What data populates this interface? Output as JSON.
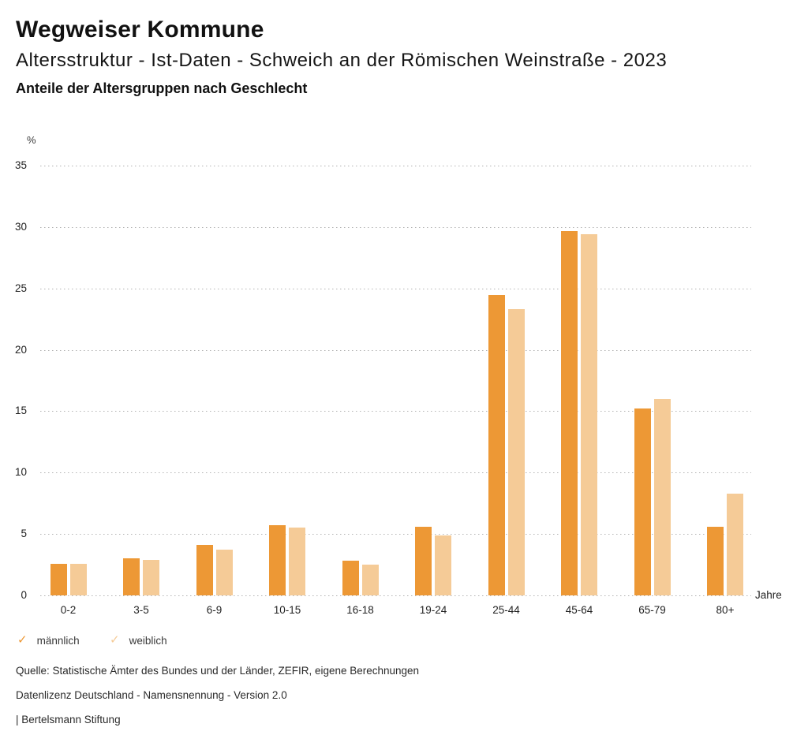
{
  "header": {
    "brand": "Wegweiser Kommune",
    "title": "Altersstruktur - Ist-Daten - Schweich an der Römischen Weinstraße - 2023",
    "subtitle": "Anteile der Altersgruppen nach Geschlecht"
  },
  "chart_data": {
    "type": "bar",
    "title": "Anteile der Altersgruppen nach Geschlecht",
    "categories": [
      "0-2",
      "3-5",
      "6-9",
      "10-15",
      "16-18",
      "19-24",
      "25-44",
      "45-64",
      "65-79",
      "80+"
    ],
    "series": [
      {
        "name": "männlich",
        "color": "#ED9835",
        "values": [
          2.6,
          3.0,
          4.1,
          5.7,
          2.8,
          5.6,
          24.5,
          29.7,
          15.2,
          5.6
        ]
      },
      {
        "name": "weiblich",
        "color": "#F5CB97",
        "values": [
          2.6,
          2.9,
          3.7,
          5.5,
          2.5,
          4.9,
          23.3,
          29.4,
          16.0,
          8.3
        ]
      }
    ],
    "ylabel": "%",
    "xlabel": "Jahre",
    "ylim": [
      0,
      35
    ],
    "ytick_step": 5,
    "yticks": [
      "0",
      "5",
      "10",
      "15",
      "20",
      "25",
      "30",
      "35"
    ],
    "grid": "horizontal-dotted",
    "legend_position": "bottom-left"
  },
  "legend": {
    "items": [
      {
        "label": "männlich",
        "color": "#ED9835",
        "icon": "check-icon"
      },
      {
        "label": "weiblich",
        "color": "#F5CB97",
        "icon": "check-icon"
      }
    ],
    "check_glyph": "✓"
  },
  "footer": {
    "source": "Quelle: Statistische Ämter des Bundes und der Länder, ZEFIR, eigene Berechnungen",
    "license": "Datenlizenz Deutschland - Namensnennung - Version 2.0",
    "attribution": "| Bertelsmann Stiftung"
  }
}
